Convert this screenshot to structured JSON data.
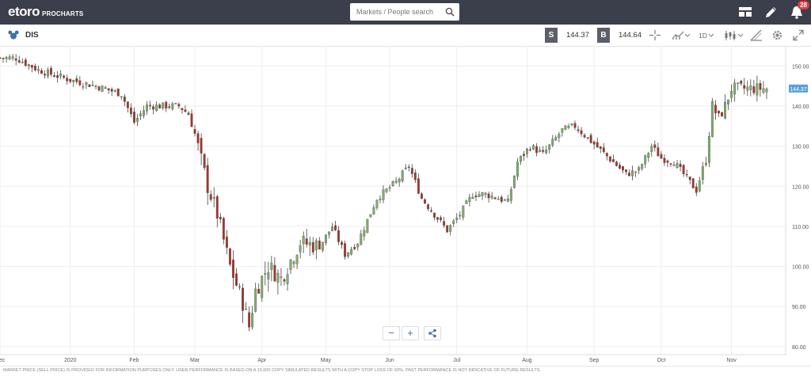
{
  "header": {
    "logo_text": "etoro",
    "logo_sub": "PROCHARTS",
    "search_placeholder": "Markets / People search",
    "notifications_count": "28"
  },
  "toolbar": {
    "symbol": "DIS",
    "sell_label": "S",
    "sell_price": "144.37",
    "buy_label": "B",
    "buy_price": "144.64",
    "period": "1D"
  },
  "chart_data": {
    "type": "candlestick",
    "ylim": [
      78,
      155
    ],
    "y_ticks": [
      "150.00",
      "140.00",
      "130.00",
      "120.00",
      "110.00",
      "100.00",
      "90.00",
      "80.00"
    ],
    "y_tick_values": [
      150,
      140,
      130,
      120,
      110,
      100,
      90,
      80
    ],
    "x_tick_labels": [
      "Dec",
      "2020",
      "Feb",
      "Mar",
      "Apr",
      "May",
      "Jun",
      "Jul",
      "Aug",
      "Sep",
      "Oct",
      "Nov"
    ],
    "last_price_label": "144.37",
    "last_price": 144.37,
    "colors": {
      "up": "#7fb069",
      "down": "#a93226",
      "grid": "#eeeeee",
      "label": "#555555",
      "last": "#5aa0d8"
    },
    "segments": [
      {
        "label": "Dec",
        "n": 22,
        "start": 147.0,
        "end": 146.5
      },
      {
        "label": "2020",
        "n": 20,
        "start": 146.5,
        "end": 139.0
      },
      {
        "label": "Feb",
        "n": 19,
        "start": 139.0,
        "end": 130.0
      },
      {
        "label": "Mar",
        "n": 21,
        "start": 130.0,
        "end": 95.0
      },
      {
        "label": "Apr",
        "n": 20,
        "start": 95.0,
        "end": 109.0
      },
      {
        "label": "May",
        "n": 20,
        "start": 109.0,
        "end": 117.0
      },
      {
        "label": "Jun",
        "n": 21,
        "start": 117.0,
        "end": 112.0
      },
      {
        "label": "Jul",
        "n": 22,
        "start": 112.0,
        "end": 116.0
      },
      {
        "label": "Aug",
        "n": 21,
        "start": 116.0,
        "end": 133.0
      },
      {
        "label": "Sep",
        "n": 21,
        "start": 133.0,
        "end": 124.0
      },
      {
        "label": "Oct",
        "n": 22,
        "start": 124.0,
        "end": 125.0
      },
      {
        "label": "Nov",
        "n": 12,
        "start": 125.0,
        "end": 144.37
      }
    ],
    "anchors": [
      {
        "i": 5,
        "v": 152
      },
      {
        "i": 12,
        "v": 149
      },
      {
        "i": 22,
        "v": 146.5
      },
      {
        "i": 30,
        "v": 145
      },
      {
        "i": 38,
        "v": 143
      },
      {
        "i": 42,
        "v": 136
      },
      {
        "i": 46,
        "v": 140
      },
      {
        "i": 56,
        "v": 140
      },
      {
        "i": 59,
        "v": 138
      },
      {
        "i": 61,
        "v": 133
      },
      {
        "i": 65,
        "v": 120
      },
      {
        "i": 68,
        "v": 113
      },
      {
        "i": 72,
        "v": 100
      },
      {
        "i": 76,
        "v": 91
      },
      {
        "i": 78,
        "v": 85
      },
      {
        "i": 80,
        "v": 94
      },
      {
        "i": 84,
        "v": 100
      },
      {
        "i": 88,
        "v": 97
      },
      {
        "i": 94,
        "v": 106
      },
      {
        "i": 100,
        "v": 105
      },
      {
        "i": 104,
        "v": 110
      },
      {
        "i": 108,
        "v": 103
      },
      {
        "i": 112,
        "v": 106
      },
      {
        "i": 118,
        "v": 117
      },
      {
        "i": 124,
        "v": 121
      },
      {
        "i": 128,
        "v": 125
      },
      {
        "i": 132,
        "v": 117
      },
      {
        "i": 136,
        "v": 113
      },
      {
        "i": 140,
        "v": 109
      },
      {
        "i": 144,
        "v": 113
      },
      {
        "i": 148,
        "v": 118
      },
      {
        "i": 152,
        "v": 118
      },
      {
        "i": 156,
        "v": 117
      },
      {
        "i": 159,
        "v": 116
      },
      {
        "i": 162,
        "v": 126
      },
      {
        "i": 166,
        "v": 130
      },
      {
        "i": 170,
        "v": 128
      },
      {
        "i": 176,
        "v": 134
      },
      {
        "i": 180,
        "v": 135
      },
      {
        "i": 184,
        "v": 132
      },
      {
        "i": 188,
        "v": 129
      },
      {
        "i": 192,
        "v": 126
      },
      {
        "i": 196,
        "v": 123
      },
      {
        "i": 200,
        "v": 124
      },
      {
        "i": 204,
        "v": 130
      },
      {
        "i": 207,
        "v": 127
      },
      {
        "i": 211,
        "v": 126
      },
      {
        "i": 215,
        "v": 122
      },
      {
        "i": 218,
        "v": 119
      },
      {
        "i": 221,
        "v": 127
      },
      {
        "i": 223,
        "v": 140
      },
      {
        "i": 225,
        "v": 137
      },
      {
        "i": 227,
        "v": 140
      },
      {
        "i": 229,
        "v": 144.37
      }
    ]
  },
  "zoom": {
    "minus": "−",
    "plus": "+"
  },
  "footer_text": "MARKET PRICE (SELL PRICE) IS PROVIDED FOR INFORMATION PURPOSES ONLY. USER PERFORMANCE IS BASED ON A 10,000 COPY SIMULATED RESULTS WITH A COPY STOP LOSS OF 60%. PAST PERFORMANCE IS NOT INDICATIVE OF FUTURE RESULTS."
}
